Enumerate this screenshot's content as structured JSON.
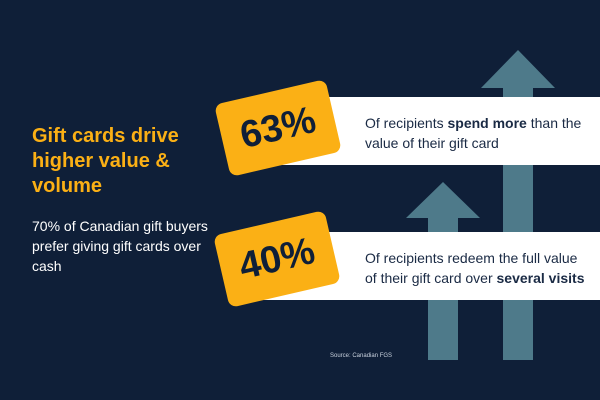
{
  "headline": "Gift cards drive higher value & volume",
  "subtext": "70% of Canadian gift buyers prefer giving gift cards over cash",
  "stats": [
    {
      "value": "63%",
      "text_before": "Of recipients ",
      "text_bold": "spend more",
      "text_after": " than the value of their gift card"
    },
    {
      "value": "40%",
      "text_before": "Of recipients redeem the full value of their gift card over ",
      "text_bold": "several visits",
      "text_after": ""
    }
  ],
  "source": "Source: Canadian FGS",
  "colors": {
    "background": "#0f1f38",
    "accent": "#fbb015",
    "arrow": "#4e7a8a",
    "band": "#ffffff",
    "text_dark": "#1a2a44"
  }
}
